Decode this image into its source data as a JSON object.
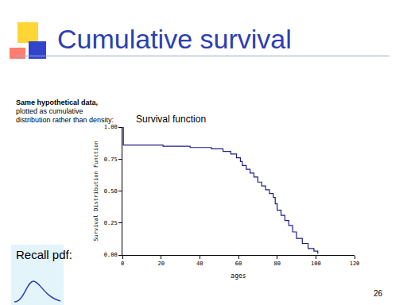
{
  "slide": {
    "title": "Cumulative survival",
    "note_bold": "Same hypothetical data,",
    "note": "plotted as cumulative distribution rather than density:",
    "recall": "Recall pdf:",
    "page": "26"
  },
  "chart_data": {
    "type": "line",
    "line_style": "step",
    "color": "#1f1f8a",
    "title": "Survival function",
    "x_label": "ages",
    "y_label": "Survival Distribution Function",
    "x": [
      0,
      0.5,
      21,
      35,
      46,
      52,
      56,
      59,
      61,
      62,
      64,
      66,
      68,
      70,
      72,
      74,
      76,
      78,
      79,
      80,
      82,
      84,
      86,
      88,
      90,
      93,
      96,
      99,
      101
    ],
    "values": [
      1.0,
      0.86,
      0.85,
      0.84,
      0.83,
      0.81,
      0.79,
      0.76,
      0.73,
      0.7,
      0.67,
      0.64,
      0.61,
      0.57,
      0.54,
      0.51,
      0.48,
      0.45,
      0.4,
      0.35,
      0.31,
      0.27,
      0.23,
      0.18,
      0.13,
      0.09,
      0.05,
      0.03,
      0.01
    ],
    "xlim": [
      0,
      120
    ],
    "xticks": [
      0,
      20,
      40,
      60,
      80,
      100,
      120
    ],
    "ylim": [
      0,
      1
    ],
    "yticks": [
      {
        "value": 0,
        "label": "0.00"
      },
      {
        "value": 0.25,
        "label": "0.25"
      },
      {
        "value": 0.5,
        "label": "0.50"
      },
      {
        "value": 0.75,
        "label": "0.75"
      },
      {
        "value": 1,
        "label": "1.00"
      }
    ],
    "grid": false
  }
}
